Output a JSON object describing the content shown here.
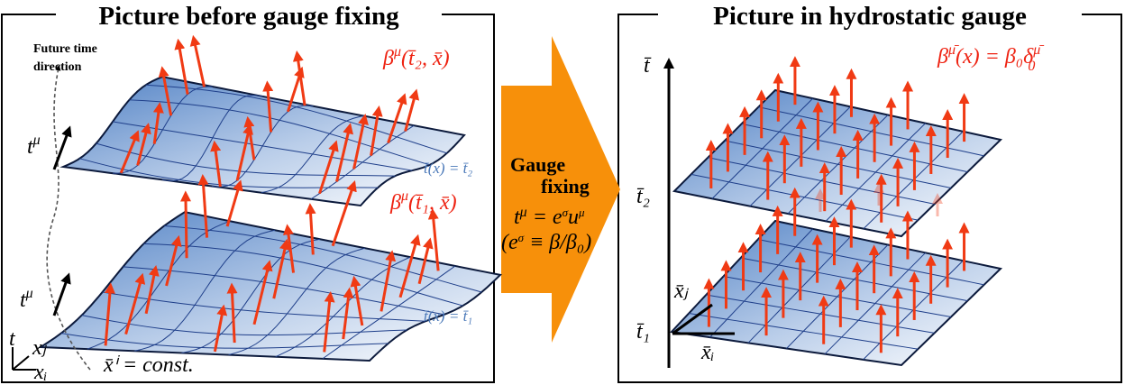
{
  "left": {
    "title": "Picture before gauge fixing",
    "future_label": [
      "Future time",
      "direction"
    ],
    "t_mu_upper": {
      "base": "t",
      "sup": "μ"
    },
    "t_mu_lower": {
      "base": "t",
      "sup": "μ"
    },
    "beta_upper": {
      "base": "β",
      "sup": "μ",
      "rest": "(t̄₂, x̄)"
    },
    "beta_lower": {
      "base": "β",
      "sup": "μ",
      "rest": "(t̄₁, x̄)"
    },
    "surface_upper": "t̄(x) = t̄₂",
    "surface_lower": "t̄(x) = t̄₁",
    "const": "x̄ⁱ = const.",
    "axes": {
      "t": "t",
      "xj": "xⱼ",
      "xi": "xᵢ"
    }
  },
  "middle": {
    "title_1": "Gauge",
    "title_2": "fixing",
    "eq_1": {
      "base": "t",
      "sup": "μ",
      "mid": " = e",
      "sup2": "σ",
      "end": "u",
      "sup3": "μ"
    },
    "eq_2": {
      "open": "(e",
      "sup": "σ",
      "rest": " ≡ β/β₀)"
    }
  },
  "right": {
    "title": "Picture in hydrostatic gauge",
    "axis_t": "t̄",
    "beta": {
      "base": "β",
      "sup": "μ̄",
      "rest": "(x) = β₀δ",
      "sup2": "μ̄",
      "sub2": "0"
    },
    "t2": "t̄₂",
    "t1": "t̄₁",
    "xj": "x̄ⱼ",
    "xi": "x̄ᵢ"
  }
}
